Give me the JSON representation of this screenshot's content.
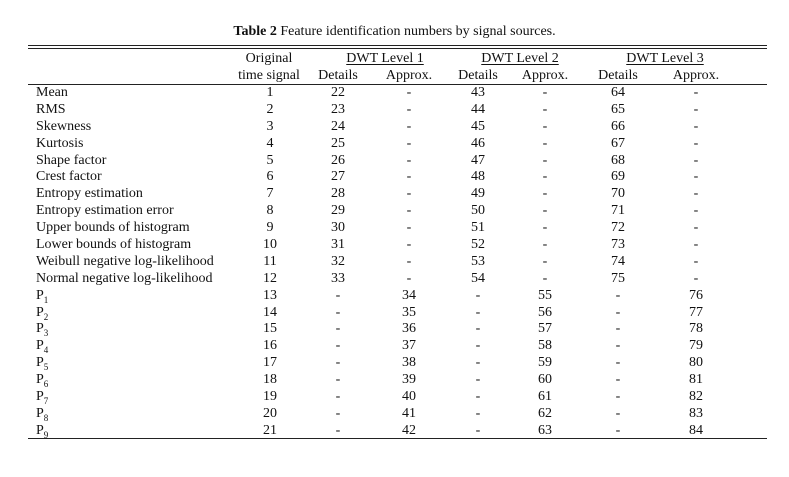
{
  "caption": {
    "label": "Table 2",
    "text": "Feature identification numbers by signal sources."
  },
  "header": {
    "original_line1": "Original",
    "original_line2": "time signal",
    "groups": [
      "DWT Level 1",
      "DWT Level 2",
      "DWT Level 3"
    ],
    "subcols": [
      "Details",
      "Approx.",
      "Details",
      "Approx.",
      "Details",
      "Approx."
    ]
  },
  "rows": [
    {
      "feature": "Mean",
      "sub": "",
      "values": [
        "1",
        "22",
        "-",
        "43",
        "-",
        "64",
        "-"
      ]
    },
    {
      "feature": "RMS",
      "sub": "",
      "values": [
        "2",
        "23",
        "-",
        "44",
        "-",
        "65",
        "-"
      ]
    },
    {
      "feature": "Skewness",
      "sub": "",
      "values": [
        "3",
        "24",
        "-",
        "45",
        "-",
        "66",
        "-"
      ]
    },
    {
      "feature": "Kurtosis",
      "sub": "",
      "values": [
        "4",
        "25",
        "-",
        "46",
        "-",
        "67",
        "-"
      ]
    },
    {
      "feature": "Shape factor",
      "sub": "",
      "values": [
        "5",
        "26",
        "-",
        "47",
        "-",
        "68",
        "-"
      ]
    },
    {
      "feature": "Crest factor",
      "sub": "",
      "values": [
        "6",
        "27",
        "-",
        "48",
        "-",
        "69",
        "-"
      ]
    },
    {
      "feature": "Entropy estimation",
      "sub": "",
      "values": [
        "7",
        "28",
        "-",
        "49",
        "-",
        "70",
        "-"
      ]
    },
    {
      "feature": "Entropy estimation error",
      "sub": "",
      "values": [
        "8",
        "29",
        "-",
        "50",
        "-",
        "71",
        "-"
      ]
    },
    {
      "feature": "Upper bounds of histogram",
      "sub": "",
      "values": [
        "9",
        "30",
        "-",
        "51",
        "-",
        "72",
        "-"
      ]
    },
    {
      "feature": "Lower bounds of histogram",
      "sub": "",
      "values": [
        "10",
        "31",
        "-",
        "52",
        "-",
        "73",
        "-"
      ]
    },
    {
      "feature": "Weibull negative log-likelihood",
      "sub": "",
      "values": [
        "11",
        "32",
        "-",
        "53",
        "-",
        "74",
        "-"
      ]
    },
    {
      "feature": "Normal negative log-likelihood",
      "sub": "",
      "values": [
        "12",
        "33",
        "-",
        "54",
        "-",
        "75",
        "-"
      ]
    },
    {
      "feature": "P",
      "sub": "1",
      "values": [
        "13",
        "-",
        "34",
        "-",
        "55",
        "-",
        "76"
      ]
    },
    {
      "feature": "P",
      "sub": "2",
      "values": [
        "14",
        "-",
        "35",
        "-",
        "56",
        "-",
        "77"
      ]
    },
    {
      "feature": "P",
      "sub": "3",
      "values": [
        "15",
        "-",
        "36",
        "-",
        "57",
        "-",
        "78"
      ]
    },
    {
      "feature": "P",
      "sub": "4",
      "values": [
        "16",
        "-",
        "37",
        "-",
        "58",
        "-",
        "79"
      ]
    },
    {
      "feature": "P",
      "sub": "5",
      "values": [
        "17",
        "-",
        "38",
        "-",
        "59",
        "-",
        "80"
      ]
    },
    {
      "feature": "P",
      "sub": "6",
      "values": [
        "18",
        "-",
        "39",
        "-",
        "60",
        "-",
        "81"
      ]
    },
    {
      "feature": "P",
      "sub": "7",
      "values": [
        "19",
        "-",
        "40",
        "-",
        "61",
        "-",
        "82"
      ]
    },
    {
      "feature": "P",
      "sub": "8",
      "values": [
        "20",
        "-",
        "41",
        "-",
        "62",
        "-",
        "83"
      ]
    },
    {
      "feature": "P",
      "sub": "9",
      "values": [
        "21",
        "-",
        "42",
        "-",
        "63",
        "-",
        "84"
      ]
    }
  ]
}
